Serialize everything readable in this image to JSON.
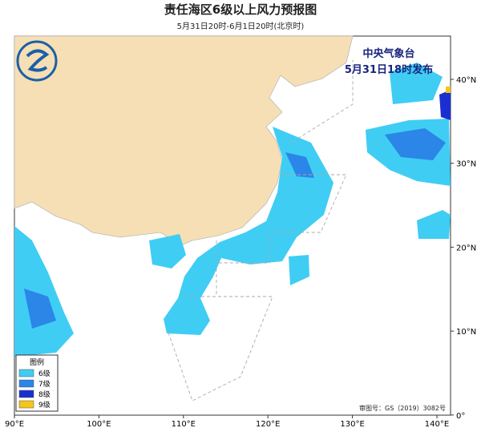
{
  "header": {
    "title": "责任海区6级以上风力预报图",
    "subtitle": "5月31日20时-6月1日20时(北京时)"
  },
  "issuer": {
    "name": "中央气象台",
    "time": "5月31日18时发布"
  },
  "axes": {
    "lon_labels": [
      "90°E",
      "100°E",
      "110°E",
      "120°E",
      "130°E",
      "140°E"
    ],
    "lat_labels": [
      "40°N",
      "30°N",
      "20°N",
      "10°N",
      "0°"
    ]
  },
  "legend": {
    "title": "图例",
    "items": [
      {
        "label": "6级",
        "color": "#3fcdf4"
      },
      {
        "label": "7级",
        "color": "#2b86e8"
      },
      {
        "label": "8级",
        "color": "#1b2fd0"
      },
      {
        "label": "9级",
        "color": "#f5c518"
      }
    ]
  },
  "approval": "审图号：GS（2019）3082号"
}
